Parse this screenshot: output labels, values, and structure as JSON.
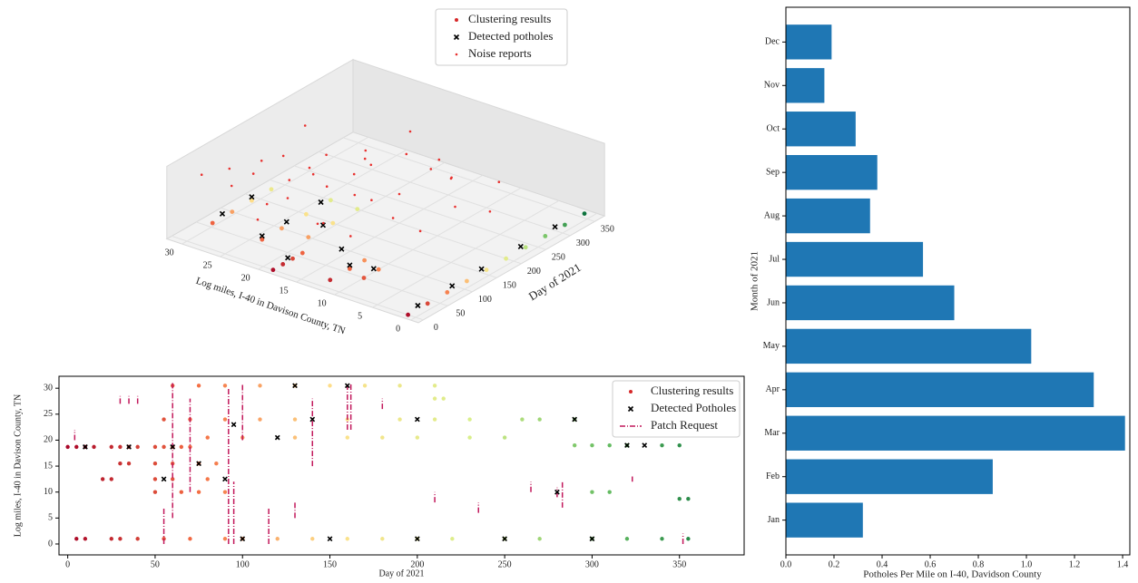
{
  "chart_data": [
    {
      "type": "scatter3d",
      "legend": [
        "Clustering results",
        "Detected potholes",
        "Noise reports"
      ],
      "xlabel": "Day of 2021",
      "ylabel": "Log miles, I-40 in Davison County, TN",
      "xlim": [
        -10,
        370
      ],
      "ylim": [
        -1,
        32
      ],
      "zlim": [
        0,
        1
      ],
      "xticks": [
        0,
        50,
        100,
        150,
        200,
        250,
        300,
        350
      ],
      "yticks": [
        0,
        5,
        10,
        15,
        20,
        25,
        30
      ],
      "colormap": [
        "#a50026",
        "#f46d43",
        "#fee08b",
        "#d9ef8b",
        "#66bd63",
        "#006837"
      ],
      "series": [
        {
          "name": "Clustering results",
          "color": "#d62728",
          "x": [
            0,
            40,
            80,
            120,
            160,
            200,
            240,
            280,
            320,
            360,
            0,
            20,
            40,
            60,
            60,
            100,
            150,
            200,
            60,
            100,
            140,
            180,
            20,
            60,
            90,
            100,
            150,
            200,
            50,
            80
          ],
          "y": [
            1,
            1,
            1,
            1,
            1,
            1,
            1,
            1,
            1,
            1,
            18.7,
            18.7,
            18.7,
            18.7,
            24,
            24,
            24,
            24,
            30.5,
            30.5,
            30.5,
            30.5,
            12.5,
            12.5,
            12.5,
            20.5,
            20.5,
            20.5,
            10,
            10
          ]
        },
        {
          "name": "Detected potholes",
          "color": "#000000",
          "x": [
            20,
            90,
            150,
            230,
            300,
            30,
            60,
            110,
            180,
            80,
            140,
            60,
            90,
            130,
            70
          ],
          "y": [
            1,
            1,
            1,
            1,
            1,
            18.7,
            24,
            24,
            24,
            30.5,
            30.5,
            12.5,
            15.5,
            20.5,
            10
          ],
          "z": [
            0.05,
            0.05,
            0.05,
            0.05,
            0.05,
            0.05,
            0.05,
            0.05,
            0.05,
            0.05,
            0.05,
            0.05,
            0.05,
            0.05,
            0.05
          ]
        },
        {
          "name": "Noise reports",
          "color": "#e8312f",
          "x": [
            30,
            60,
            90,
            120,
            150,
            180,
            210,
            240,
            270,
            300,
            20,
            50,
            80,
            110,
            140,
            170,
            200,
            230,
            260,
            290,
            40,
            70,
            100,
            130,
            160,
            190,
            220,
            250,
            280,
            310,
            45,
            85,
            125,
            165,
            205,
            245
          ],
          "y": [
            30,
            28,
            26,
            29,
            27,
            25,
            28,
            22,
            24,
            20,
            22,
            20,
            18,
            21,
            17,
            19,
            15,
            16,
            12,
            14,
            27,
            24,
            23,
            20,
            22,
            18,
            20,
            13,
            16,
            9,
            15,
            14,
            11,
            10,
            8,
            6
          ],
          "z": [
            0.8,
            0.6,
            0.9,
            0.5,
            0.7,
            0.4,
            0.85,
            0.6,
            0.3,
            0.7,
            0.5,
            0.75,
            0.35,
            0.9,
            0.55,
            0.65,
            0.4,
            0.8,
            0.5,
            0.3,
            0.95,
            0.45,
            0.7,
            0.6,
            0.85,
            0.25,
            0.55,
            0.75,
            0.4,
            0.35,
            0.6,
            0.3,
            0.5,
            0.2,
            0.45,
            0.3
          ]
        }
      ]
    },
    {
      "type": "scatter",
      "xlabel": "Day of 2021",
      "ylabel": "Log miles, I-40 in Davison County, TN",
      "xlim": [
        -5,
        387
      ],
      "ylim": [
        -2.1,
        32.3
      ],
      "xticks": [
        0,
        50,
        100,
        150,
        200,
        250,
        300,
        350
      ],
      "yticks": [
        0,
        5,
        10,
        15,
        20,
        25,
        30
      ],
      "colormap": [
        "#a50026",
        "#f46d43",
        "#fee08b",
        "#d9ef8b",
        "#66bd63",
        "#006837"
      ],
      "legend_loc": "upper right",
      "series": [
        {
          "name": "Clustering results",
          "color": "#d62728",
          "x": [
            0,
            5,
            10,
            15,
            25,
            30,
            35,
            40,
            50,
            55,
            60,
            65,
            70,
            5,
            10,
            25,
            30,
            40,
            55,
            70,
            90,
            100,
            120,
            140,
            160,
            180,
            200,
            220,
            250,
            270,
            300,
            320,
            340,
            355,
            20,
            25,
            50,
            60,
            80,
            30,
            35,
            50,
            60,
            75,
            85,
            55,
            70,
            90,
            110,
            130,
            160,
            190,
            210,
            230,
            260,
            270,
            290,
            60,
            75,
            90,
            110,
            130,
            150,
            170,
            190,
            210,
            80,
            100,
            130,
            160,
            180,
            200,
            230,
            250,
            290,
            300,
            310,
            320,
            340,
            350,
            50,
            65,
            75,
            90,
            300,
            310,
            350,
            355,
            210,
            215
          ],
          "y": [
            18.7,
            18.7,
            18.7,
            18.7,
            18.7,
            18.7,
            18.7,
            18.7,
            18.7,
            18.7,
            18.7,
            18.7,
            18.7,
            1,
            1,
            1,
            1,
            1,
            1,
            1,
            1,
            1,
            1,
            1,
            1,
            1,
            1,
            1,
            1,
            1,
            1,
            1,
            1,
            1,
            12.5,
            12.5,
            12.5,
            12.5,
            12.5,
            15.5,
            15.5,
            15.5,
            15.5,
            15.5,
            15.5,
            24,
            24,
            24,
            24,
            24,
            24,
            24,
            24,
            24,
            24,
            24,
            24,
            30.5,
            30.5,
            30.5,
            30.5,
            30.5,
            30.5,
            30.5,
            30.5,
            30.5,
            20.5,
            20.5,
            20.5,
            20.5,
            20.5,
            20.5,
            20.5,
            20.5,
            19,
            19,
            19,
            19,
            19,
            19,
            10,
            10,
            10,
            10,
            10,
            10,
            8.7,
            8.7,
            28,
            28
          ]
        },
        {
          "name": "Detected Potholes",
          "color": "#000000",
          "x": [
            10,
            35,
            60,
            100,
            150,
            200,
            250,
            300,
            280,
            95,
            130,
            160,
            140,
            200,
            290,
            330,
            320,
            120,
            55,
            90,
            75
          ],
          "y": [
            18.7,
            18.7,
            18.7,
            1,
            1,
            1,
            1,
            1,
            10,
            23,
            30.5,
            30.5,
            24,
            24,
            24,
            19,
            19,
            20.5,
            12.5,
            12.5,
            15.5
          ]
        },
        {
          "name": "Patch Request",
          "color": "#c2185b",
          "x": [
            30,
            35,
            40,
            55,
            60,
            70,
            92,
            95,
            100,
            140,
            160,
            162,
            180,
            235,
            210,
            265,
            280,
            283,
            323,
            352,
            4,
            115,
            130
          ],
          "y_start": [
            27,
            27,
            27,
            0,
            5,
            10,
            0,
            0,
            20,
            15,
            22,
            22,
            26,
            6,
            8,
            10,
            9,
            7,
            12,
            0,
            20,
            0,
            5
          ],
          "y_end": [
            28.5,
            28.5,
            28.5,
            7,
            31,
            28,
            30,
            12,
            31,
            28,
            31,
            31,
            28,
            8,
            10,
            12,
            11,
            12,
            13,
            2,
            22,
            7,
            8
          ]
        }
      ]
    },
    {
      "type": "barh",
      "xlabel": "Potholes Per Mile on I-40, Davidson County",
      "ylabel": "Month of 2021",
      "categories": [
        "Jan",
        "Feb",
        "Mar",
        "Apr",
        "May",
        "Jun",
        "Jul",
        "Aug",
        "Sep",
        "Oct",
        "Nov",
        "Dec"
      ],
      "values": [
        0.32,
        0.86,
        1.41,
        1.28,
        1.02,
        0.7,
        0.57,
        0.35,
        0.38,
        0.29,
        0.16,
        0.19
      ],
      "color": "#1f77b4",
      "xlim": [
        0,
        1.43
      ],
      "xticks": [
        {
          "value": 0,
          "label": "0.0"
        },
        0.2,
        0.4,
        0.6,
        0.8,
        {
          "value": 1,
          "label": "1.0"
        },
        1.2,
        1.4
      ]
    }
  ]
}
